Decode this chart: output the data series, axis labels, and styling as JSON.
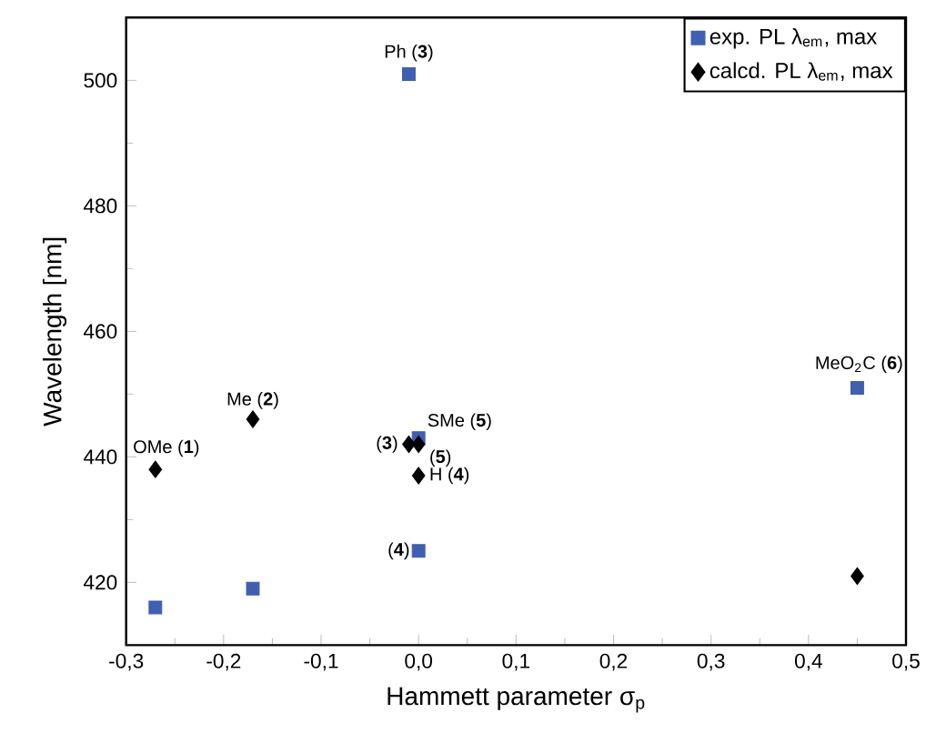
{
  "chart_data": {
    "type": "scatter",
    "xlabel": "Hammett parameter σ$_{p}$",
    "ylabel": "Wavelength [nm]",
    "xlim": [
      -0.3,
      0.5
    ],
    "ylim": [
      410,
      510
    ],
    "xticks": [
      {
        "value": -0.3,
        "label": "-0,3"
      },
      {
        "value": -0.2,
        "label": "-0,2"
      },
      {
        "value": -0.1,
        "label": "-0,1"
      },
      {
        "value": 0.0,
        "label": "0,0"
      },
      {
        "value": 0.1,
        "label": "0,1"
      },
      {
        "value": 0.2,
        "label": "0,2"
      },
      {
        "value": 0.3,
        "label": "0,3"
      },
      {
        "value": 0.4,
        "label": "0,4"
      },
      {
        "value": 0.5,
        "label": "0,5"
      }
    ],
    "yticks": [
      420,
      440,
      460,
      480,
      500
    ],
    "legend": "top right",
    "grid": false,
    "series": [
      {
        "name": "exp. PL λ$_{em}$, max",
        "color": "#3f5fb0",
        "marker": "square",
        "x": [
          -0.27,
          -0.17,
          -0.01,
          0.0,
          0.0,
          0.45
        ],
        "values": [
          416,
          419,
          501,
          425,
          443,
          451
        ]
      },
      {
        "name": "calcd. PL λ$_{em}$, max",
        "color": "#000000",
        "marker": "diamond",
        "x": [
          -0.27,
          -0.17,
          -0.01,
          0.0,
          0.0,
          0.45
        ],
        "values": [
          438,
          446,
          442,
          437,
          442,
          421
        ]
      }
    ],
    "annotations": [
      {
        "text": "OMe (**1**)",
        "x": -0.27,
        "y": 438
      },
      {
        "text": "Me (**2**)",
        "x": -0.17,
        "y": 446
      },
      {
        "text": "Ph (**3**)",
        "x": -0.01,
        "y": 501
      },
      {
        "text": "(**3**)",
        "x": -0.01,
        "y": 442
      },
      {
        "text": "SMe (**5**)",
        "x": 0.0,
        "y": 443
      },
      {
        "text": "(**5**)",
        "x": 0.0,
        "y": 442
      },
      {
        "text": "H (**4**)",
        "x": 0.0,
        "y": 437
      },
      {
        "text": "(**4**)",
        "x": 0.0,
        "y": 425
      },
      {
        "text": "MeO$_{2}$C (**6**)",
        "x": 0.45,
        "y": 451
      }
    ]
  }
}
